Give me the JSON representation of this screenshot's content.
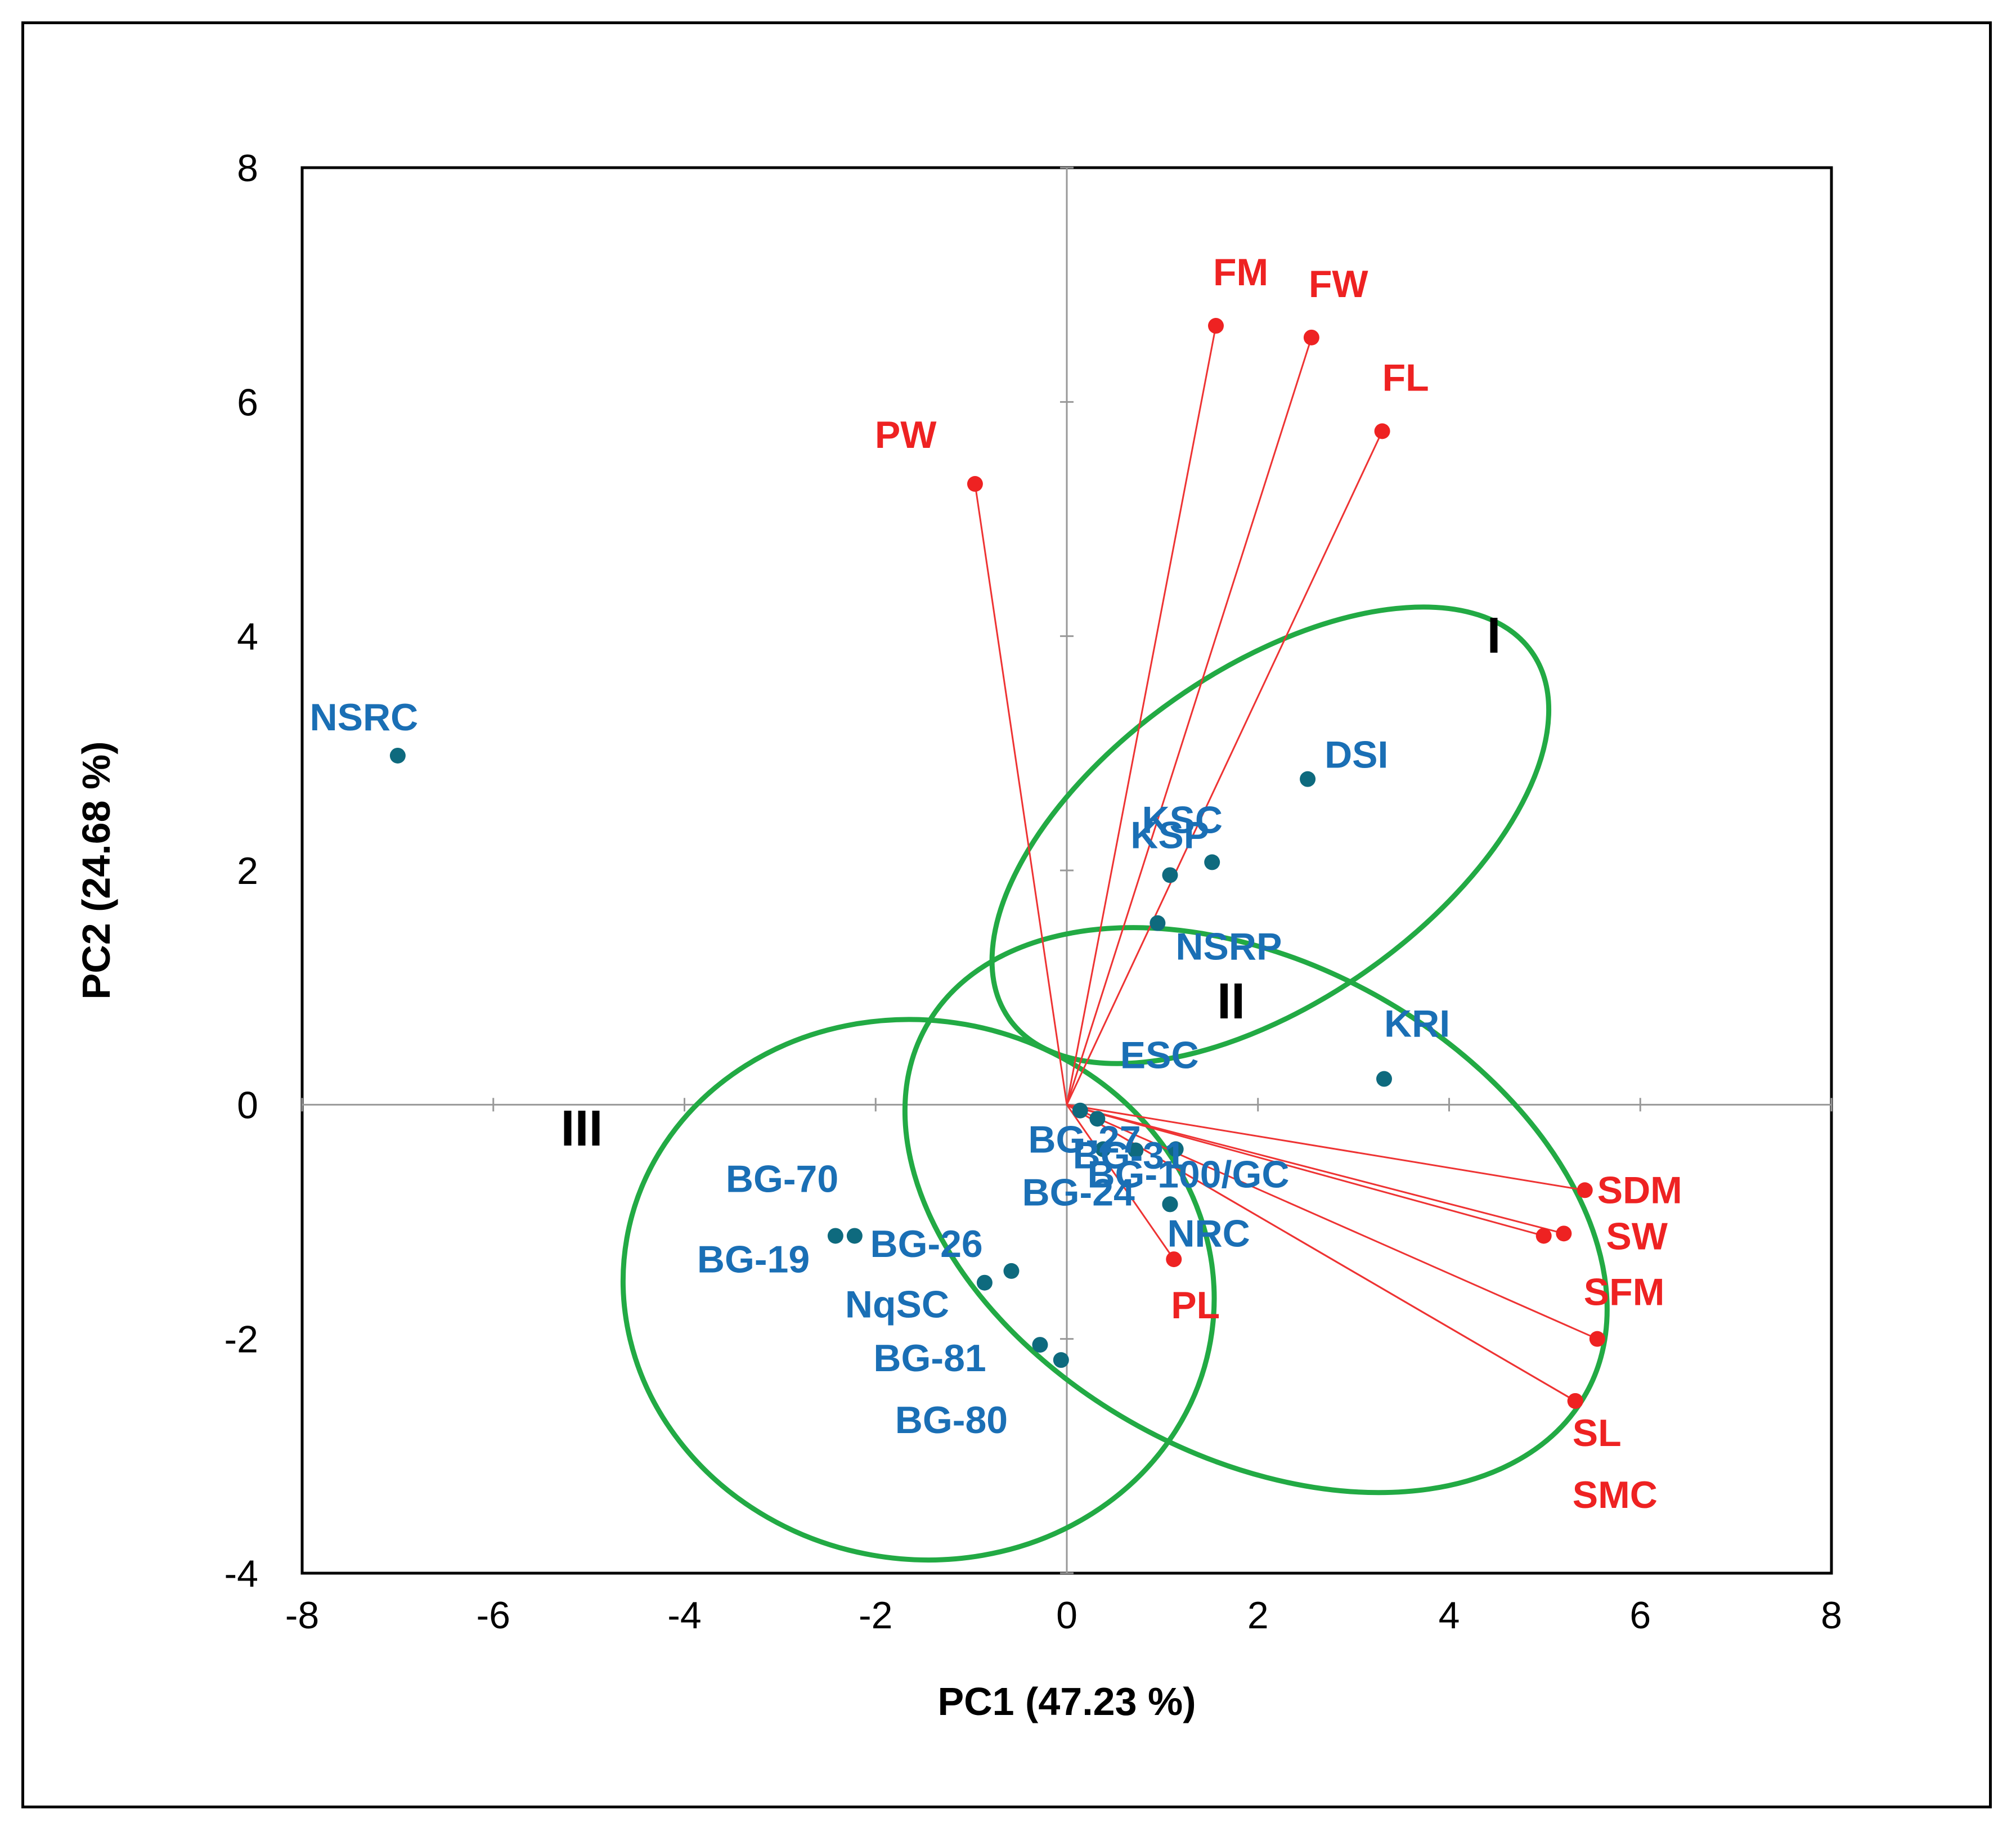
{
  "chart_data": {
    "type": "scatter",
    "subtype": "PCA biplot",
    "xlabel": "PC1 (47.23 %)",
    "ylabel": "PC2 (24.68 %)",
    "xlim": [
      -8,
      8
    ],
    "ylim": [
      -4,
      8
    ],
    "x_ticks": [
      "-8",
      "-6",
      "-4",
      "-2",
      "0",
      "2",
      "4",
      "6",
      "8"
    ],
    "y_ticks": [
      "8",
      "6",
      "4",
      "2",
      "0",
      "-2",
      "-4"
    ],
    "grid": false,
    "colors": {
      "genotype": "#1a6fb5",
      "genotype_marker": "#0e6a7e",
      "variable": "#ee2222",
      "vector_line": "#ee3333",
      "ellipse": "#22aa44",
      "zero_line": "#999999"
    },
    "genotypes": [
      {
        "label": "NSRC",
        "x": -7.0,
        "y": 2.98
      },
      {
        "label": "DSI",
        "x": 2.52,
        "y": 2.78
      },
      {
        "label": "KSP",
        "x": 1.52,
        "y": 2.07
      },
      {
        "label": "KSC",
        "x": 1.08,
        "y": 1.96
      },
      {
        "label": "NSRP",
        "x": 0.95,
        "y": 1.55
      },
      {
        "label": "KRI",
        "x": 3.32,
        "y": 0.22
      },
      {
        "label": "ESC",
        "x": 0.14,
        "y": -0.05
      },
      {
        "label": "BG-27",
        "x": 0.32,
        "y": -0.12
      },
      {
        "label": "BG-24",
        "x": 0.38,
        "y": -0.38
      },
      {
        "label": "",
        "x": 0.72,
        "y": -0.39
      },
      {
        "label": "BG-31",
        "x": 1.14,
        "y": -0.38
      },
      {
        "label": "BG-100/GC",
        "x": 1.08,
        "y": -0.85
      },
      {
        "label": "NRC",
        "x": 1.08,
        "y": -0.85
      },
      {
        "label": "BG-70",
        "x": -2.42,
        "y": -1.12
      },
      {
        "label": "BG-19",
        "x": -2.22,
        "y": -1.12
      },
      {
        "label": "BG-26",
        "x": -0.58,
        "y": -1.42
      },
      {
        "label": "NqSC",
        "x": -0.86,
        "y": -1.52
      },
      {
        "label": "BG-81",
        "x": -0.28,
        "y": -2.05
      },
      {
        "label": "BG-80",
        "x": -0.06,
        "y": -2.18
      }
    ],
    "variables": [
      {
        "label": "FM",
        "x": 1.56,
        "y": 6.65
      },
      {
        "label": "FW",
        "x": 2.56,
        "y": 6.55
      },
      {
        "label": "FL",
        "x": 3.3,
        "y": 5.75
      },
      {
        "label": "PW",
        "x": -0.96,
        "y": 5.3
      },
      {
        "label": "SDM",
        "x": 5.42,
        "y": -0.73
      },
      {
        "label": "SW",
        "x": 5.2,
        "y": -1.1
      },
      {
        "label": "",
        "x": 4.99,
        "y": -1.12
      },
      {
        "label": "SFM",
        "x": 5.55,
        "y": -2.0
      },
      {
        "label": "SL",
        "x": 5.32,
        "y": -2.53
      },
      {
        "label": "SMC",
        "x": 5.32,
        "y": -2.53
      },
      {
        "label": "PL",
        "x": 1.12,
        "y": -1.32
      }
    ],
    "groups": [
      {
        "label": "I",
        "cx": 2.13,
        "cy": 2.3,
        "rx": 3.34,
        "ry": 1.42,
        "angle_deg": -35
      },
      {
        "label": "II",
        "cx": 1.98,
        "cy": -0.9,
        "rx": 3.95,
        "ry": 2.1,
        "angle_deg": 29
      },
      {
        "label": "III",
        "cx": -1.55,
        "cy": -1.58,
        "rx": 3.1,
        "ry": 2.3,
        "angle_deg": 10
      }
    ]
  }
}
